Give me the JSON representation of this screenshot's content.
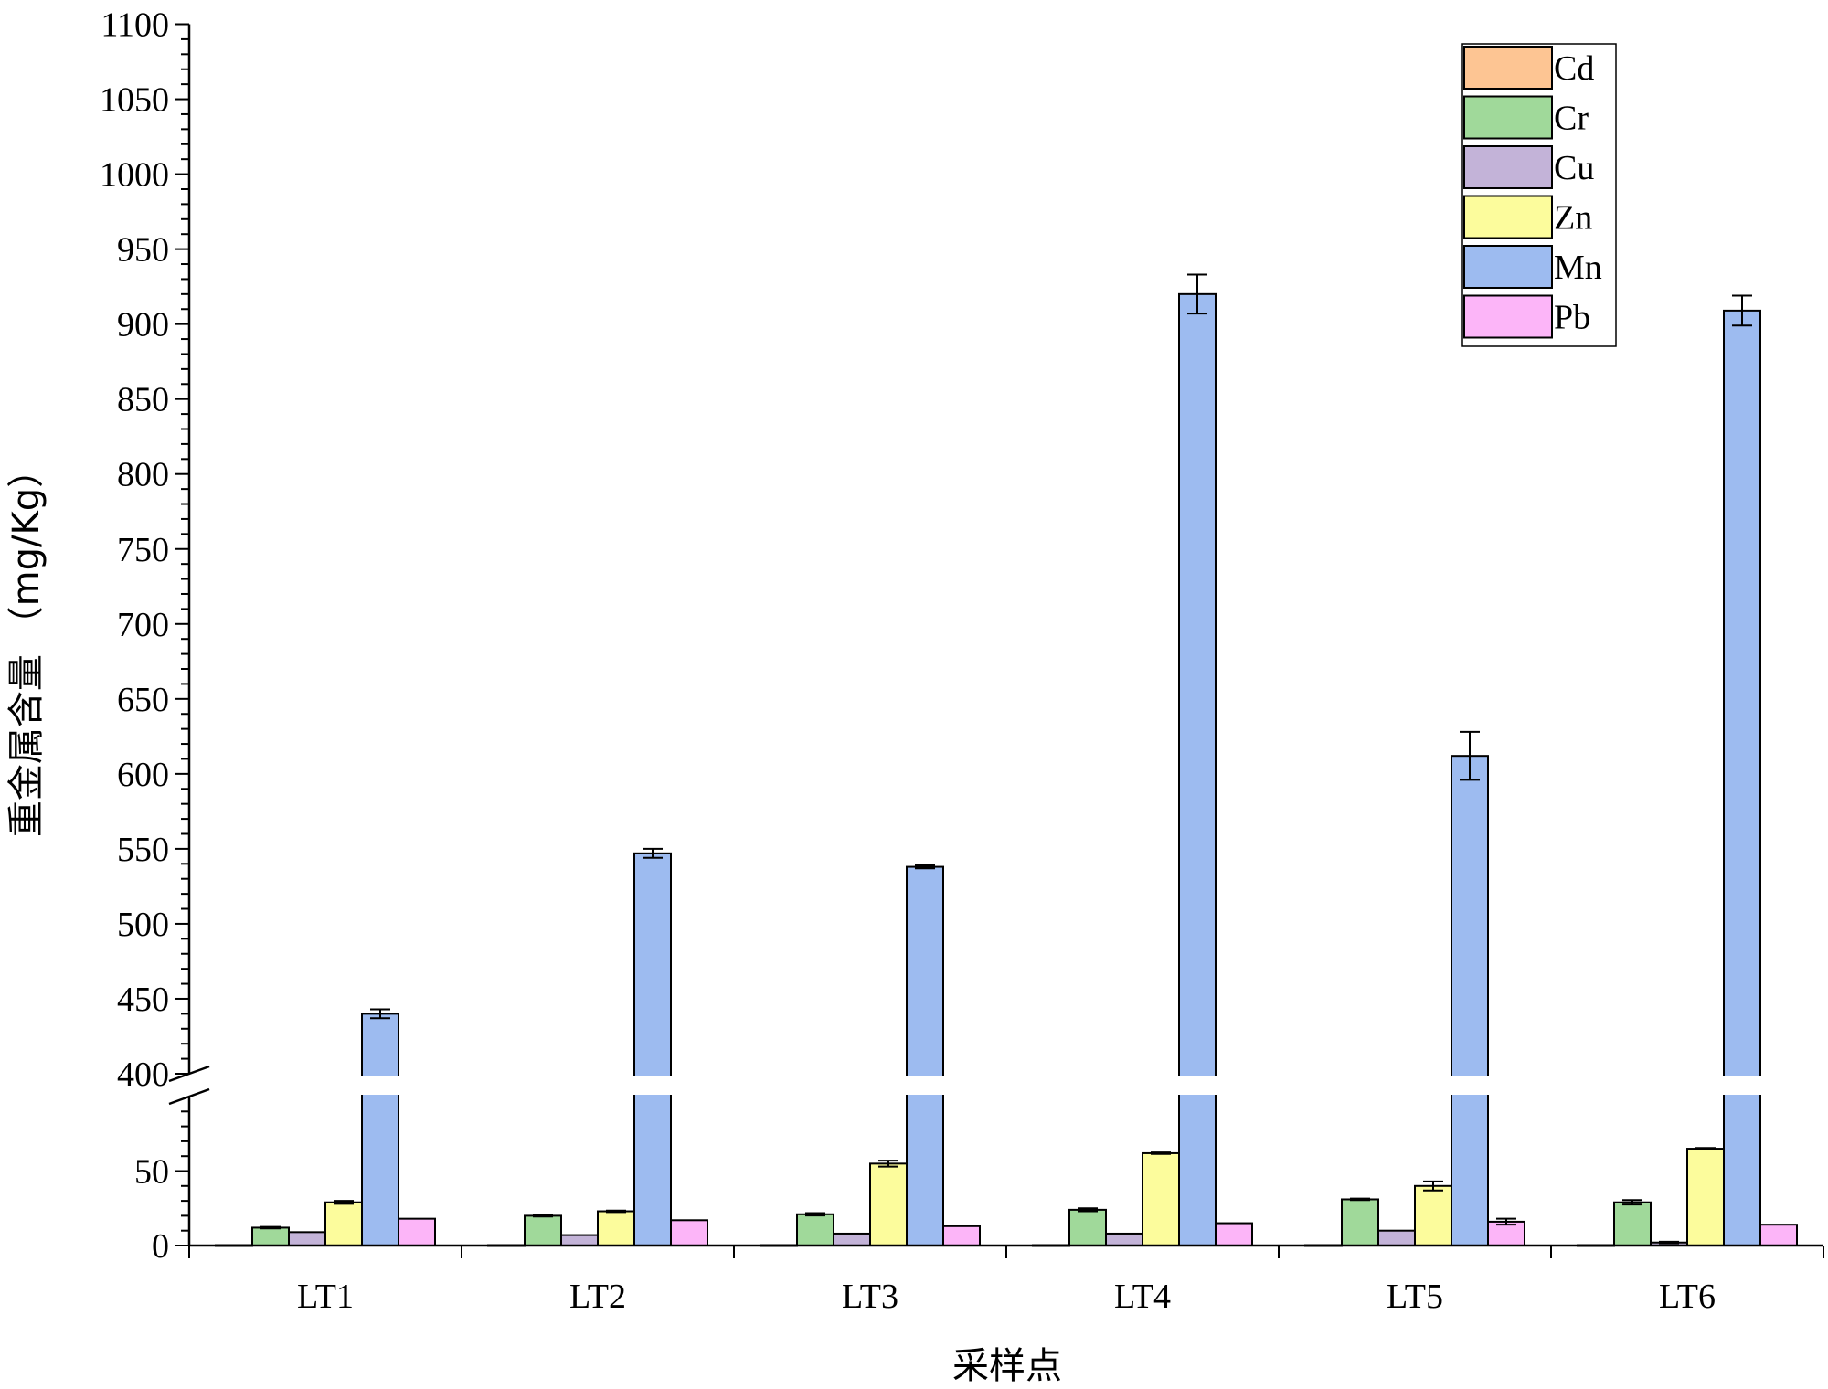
{
  "chart_data": {
    "type": "bar",
    "title": "",
    "xlabel": "采样点",
    "ylabel": "重金属含量 （mg/Kg）",
    "categories": [
      "LT1",
      "LT2",
      "LT3",
      "LT4",
      "LT5",
      "LT6"
    ],
    "axis_break": {
      "lower_range": [
        0,
        100
      ],
      "upper_range": [
        400,
        1100
      ]
    },
    "lower_ticks": [
      0,
      50
    ],
    "upper_ticks": [
      400,
      450,
      500,
      550,
      600,
      650,
      700,
      750,
      800,
      850,
      900,
      950,
      1000,
      1050,
      1100
    ],
    "legend_position": "top-right",
    "grid": false,
    "series": [
      {
        "name": "Cd",
        "color": "#fdc593",
        "values": [
          0.3,
          0.3,
          0.3,
          0.3,
          0.3,
          0.3
        ],
        "errors": [
          0,
          0,
          0,
          0,
          0,
          0
        ]
      },
      {
        "name": "Cr",
        "color": "#a0d99a",
        "values": [
          12,
          20,
          21,
          24,
          31,
          29
        ],
        "errors": [
          0.5,
          0.5,
          0.8,
          1,
          0.5,
          1.5
        ]
      },
      {
        "name": "Cu",
        "color": "#c3b3d8",
        "values": [
          9,
          7,
          8,
          8,
          10,
          2
        ],
        "errors": [
          0,
          0,
          0,
          0,
          0,
          0.5
        ]
      },
      {
        "name": "Zn",
        "color": "#fcfc9c",
        "values": [
          29,
          23,
          55,
          62,
          40,
          65
        ],
        "errors": [
          1,
          0.5,
          2,
          0.5,
          3,
          0.5
        ]
      },
      {
        "name": "Mn",
        "color": "#9dbbf0",
        "values": [
          440,
          547,
          538,
          920,
          612,
          909
        ],
        "errors": [
          3,
          3,
          1,
          13,
          16,
          10
        ]
      },
      {
        "name": "Pb",
        "color": "#fcb5f8",
        "values": [
          18,
          17,
          13,
          15,
          16,
          14
        ],
        "errors": [
          0,
          0,
          0,
          0,
          2,
          0
        ]
      }
    ]
  }
}
